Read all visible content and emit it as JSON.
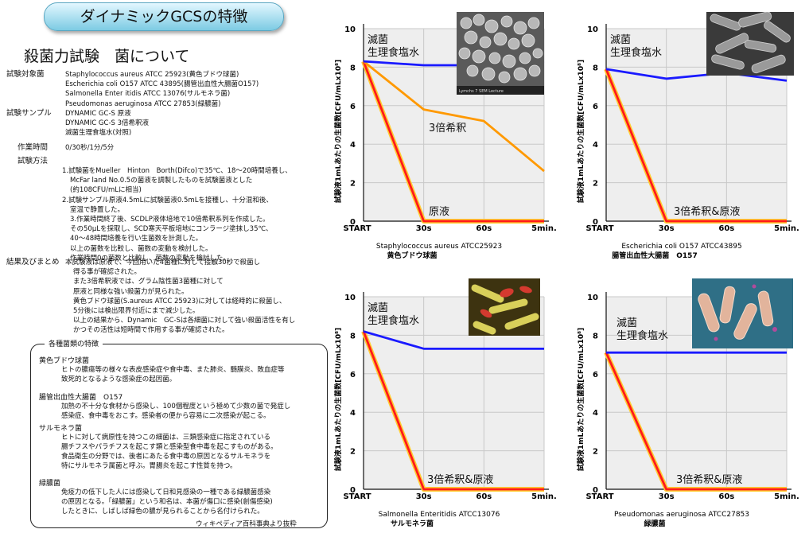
{
  "header": {
    "title": "ダイナミックGCSの特徴",
    "subtitle": "殺菌力試験　菌について"
  },
  "info": {
    "target_label": "試験対象菌",
    "targets": [
      "Staphylococcus aureus ATCC 25923(黄色ブドウ球菌)",
      "Escherichia coli O157 ATCC 43895(腸管出血性大腸菌O157)",
      "Salmonella Enter itidis ATCC 13076(サルモネラ菌)",
      "Pseudomonas aeruginosa ATCC 27853(緑膿菌)"
    ],
    "sample_label": "試験サンプル",
    "samples": [
      "DYNAMIC GC-S 原液",
      "DYNAMIC GC-S 3倍希釈液",
      "滅菌生理食塩水(対照)"
    ],
    "time_label": "作業時間",
    "time_value": "0/30秒/1分/5分",
    "method_label": "試験方法",
    "method_lines": [
      "1.試験菌をMueller　Hinton　Borth(Difco)で35℃、18～20時間培養し、",
      "McFar land No.0.5の菌液を調製したものを試験菌液とした",
      "(約108CFU/mLに相当)",
      "2.試験サンプル原液4.5mLに試験菌液0.5mLを接種し、十分混和後、",
      "室温で静置した。",
      "3.作業時間終了後、SCDLP液体培地で10倍希釈系列を作成した。",
      "その50μLを採取し、SCD寒天平板培地にコンラージ塗抹し35℃、",
      "40～48時間培養を行い生菌数を計測した。",
      "以上の菌数を比較し、菌数の変動を検討した。",
      "作業時間0の菌数と比較し、菌数の変動を検討した。"
    ],
    "result_label": "結果及びまとめ",
    "result_lines": [
      "本試験液は原液で、今回用いた4菌種に対して接触30秒で殺菌し",
      "得る事が確認された。",
      "また3倍希釈液では、グラム陰性菌3菌種に対して",
      "原液と同様な強い殺菌力が見られた。",
      "黄色ブドウ球菌(S.aureus ATCC 25923)に対しては経時的に殺菌し、",
      "5分後には検出限界付近にまで減少した。",
      "以上の結果から、Dynamic　GC-Sは各細菌に対して強い殺菌活性を有し",
      "かつその活性は短時間で作用する事が確認された。"
    ]
  },
  "features": {
    "title": "各種菌類の特徴",
    "items": [
      {
        "name": "黄色ブドウ球菌",
        "lines": [
          "ヒトの膿瘍等の様々な表皮感染症や食中毒、また肺炎、髄膜炎、敗血症等",
          "致死的となるような感染症の起因菌。"
        ]
      },
      {
        "name": "腸管出血性大腸菌　O157",
        "lines": [
          "加熱の不十分な食材から感染し、100個程度という極めて少数の菌で発症し",
          "感染症、食中毒をおこす。感染者の便から容易に二次感染が起こる。"
        ]
      },
      {
        "name": "サルモネラ菌",
        "lines": [
          "ヒトに対して病原性を持つこの細菌は、三類感染症に指定されている",
          "腸チフスやパラチフスを起こす類と感染型食中毒を起こすものがある。",
          "食品衛生の分野では、後者にあたる食中毒の原因となるサルモネラを",
          "特にサルモネラ属菌と呼ぶ。胃腸炎を起こす性質を持つ。"
        ]
      },
      {
        "name": "緑膿菌",
        "lines": [
          "免疫力の低下した人には感染して日和見感染の一種である緑膿菌感染",
          "の原因となる。「緑膿菌」という和名は、本菌が傷口に感染(創傷感染)",
          "したときに、しばしば緑色の膿が見られることから名付けられた。"
        ]
      }
    ],
    "credit": "ウィキペディア百科事典より抜粋"
  },
  "chart_data": [
    {
      "type": "line",
      "categories": [
        "START",
        "30s",
        "60s",
        "5min."
      ],
      "ylabel": "試験液1mLあたりの生菌数[CFU/mLx10⁸]",
      "ylim": [
        0,
        10
      ],
      "yticks": [
        0,
        2,
        4,
        6,
        8,
        10
      ],
      "caption": "Staphylococcus aureus ATCC25923",
      "caption_jp": "黄色ブドウ球菌",
      "series": [
        {
          "name": "滅菌\n生理食塩水",
          "color": "#1a1aff",
          "values": [
            8.3,
            8.1,
            8.1,
            8.3
          ]
        },
        {
          "name": "3倍希釈",
          "color": "#ff9900",
          "values": [
            8.3,
            5.8,
            5.2,
            2.6
          ]
        },
        {
          "name": "原液",
          "color": "#ff1a1a",
          "values": [
            8.3,
            0,
            0,
            0
          ]
        }
      ]
    },
    {
      "type": "line",
      "categories": [
        "START",
        "30s",
        "60s",
        "5min."
      ],
      "ylabel": "試験液1mLあたりの生菌数[CFU/mLx10⁸]",
      "ylim": [
        0,
        10
      ],
      "yticks": [
        0,
        2,
        4,
        6,
        8,
        10
      ],
      "caption": "Escherichia coli O157 ATCC43895",
      "caption_jp": "腸管出血性大腸菌　O157",
      "series": [
        {
          "name": "滅菌\n生理食塩水",
          "color": "#1a1aff",
          "values": [
            7.9,
            7.4,
            7.7,
            7.3
          ]
        },
        {
          "name": "3倍希釈&原液",
          "color": "#ff1a1a",
          "values": [
            7.9,
            0,
            0,
            0
          ]
        }
      ]
    },
    {
      "type": "line",
      "categories": [
        "START",
        "30s",
        "60s",
        "5min."
      ],
      "ylabel": "試験液1mLあたりの生菌数[CFU/mLx10⁸]",
      "ylim": [
        0,
        10
      ],
      "yticks": [
        0,
        2,
        4,
        6,
        8,
        10
      ],
      "caption": "Salmonella Enteritidis ATCC13076",
      "caption_jp": "サルモネラ菌",
      "series": [
        {
          "name": "滅菌\n生理食塩水",
          "color": "#1a1aff",
          "values": [
            8.2,
            7.3,
            7.3,
            7.3
          ]
        },
        {
          "name": "3倍希釈&原液",
          "color": "#ff1a1a",
          "values": [
            8.2,
            0,
            0,
            0
          ]
        }
      ]
    },
    {
      "type": "line",
      "categories": [
        "START",
        "30s",
        "60s",
        "5min."
      ],
      "ylabel": "試験液1mLあたりの生菌数[CFU/mLx10⁸]",
      "ylim": [
        0,
        10
      ],
      "yticks": [
        0,
        2,
        4,
        6,
        8,
        10
      ],
      "caption": "Pseudomonas aeruginosa ATCC27853",
      "caption_jp": "緑膿菌",
      "series": [
        {
          "name": "滅菌\n生理食塩水",
          "color": "#1a1aff",
          "values": [
            7.1,
            7.1,
            7.1,
            7.1
          ]
        },
        {
          "name": "3倍希釈&原液",
          "color": "#ff1a1a",
          "values": [
            7.1,
            0,
            0,
            0
          ]
        }
      ]
    }
  ],
  "photo_labels": {
    "scale_text": "Lymchs     7 SEM Lecture"
  }
}
